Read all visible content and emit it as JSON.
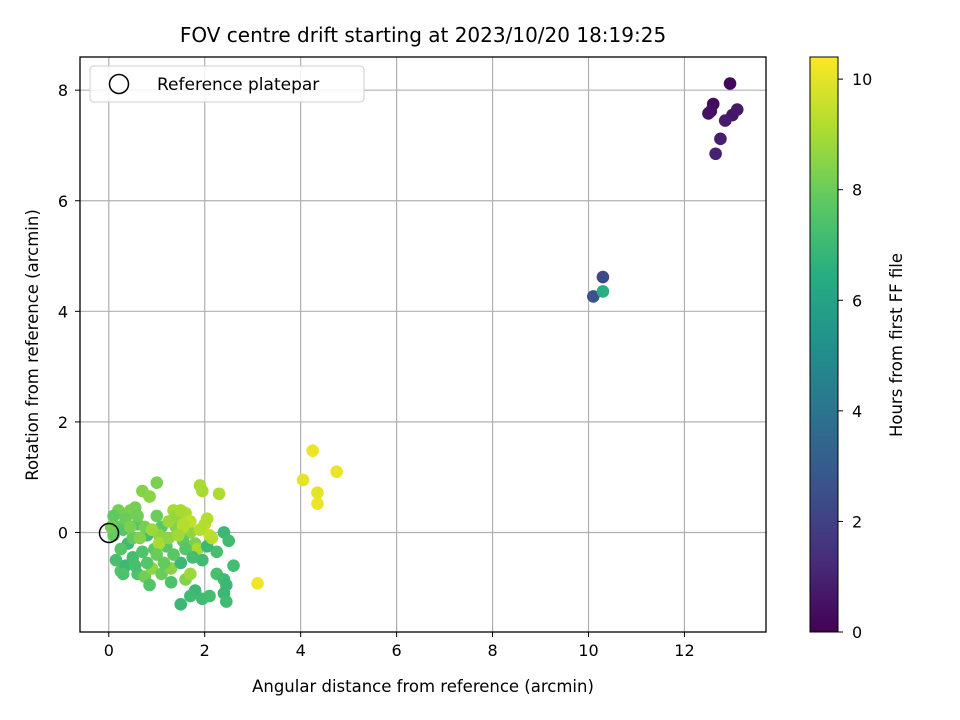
{
  "chart_data": {
    "type": "scatter",
    "title": "FOV centre drift starting at 2023/10/20 18:19:25",
    "xlabel": "Angular distance from reference (arcmin)",
    "ylabel": "Rotation from reference (arcmin)",
    "xlim": [
      -0.6,
      13.7
    ],
    "ylim": [
      -1.8,
      8.6
    ],
    "xticks": [
      0,
      2,
      4,
      6,
      8,
      10,
      12
    ],
    "yticks": [
      0,
      2,
      4,
      6,
      8
    ],
    "grid": true,
    "legend": {
      "placement": "upper-left",
      "entries": [
        "Reference platepar"
      ]
    },
    "colorbar": {
      "label": "Hours from first FF file",
      "range": [
        0,
        10.4
      ],
      "ticks": [
        0,
        2,
        4,
        6,
        8,
        10
      ],
      "colormap": "viridis"
    },
    "reference_point": {
      "x": 0,
      "y": 0,
      "label": "Reference platepar"
    },
    "points": [
      [
        12.95,
        8.12,
        0.2
      ],
      [
        12.6,
        7.75,
        0.3
      ],
      [
        12.55,
        7.62,
        0.4
      ],
      [
        12.5,
        7.58,
        0.5
      ],
      [
        13.0,
        7.55,
        0.6
      ],
      [
        13.1,
        7.65,
        0.7
      ],
      [
        12.85,
        7.45,
        0.8
      ],
      [
        12.75,
        7.12,
        0.9
      ],
      [
        12.65,
        6.85,
        1.0
      ],
      [
        10.3,
        4.62,
        2.3
      ],
      [
        10.1,
        4.27,
        2.6
      ],
      [
        10.3,
        4.36,
        6.5
      ],
      [
        4.25,
        1.48,
        10.1
      ],
      [
        4.75,
        1.1,
        10.1
      ],
      [
        4.05,
        0.95,
        10.0
      ],
      [
        4.35,
        0.72,
        10.0
      ],
      [
        4.35,
        0.52,
        10.1
      ],
      [
        3.1,
        -0.92,
        10.2
      ],
      [
        0.45,
        0.4,
        8.3
      ],
      [
        0.55,
        0.45,
        8.2
      ],
      [
        0.2,
        0.4,
        8.2
      ],
      [
        0.7,
        0.75,
        8.4
      ],
      [
        0.85,
        0.65,
        8.5
      ],
      [
        1.0,
        0.9,
        8.3
      ],
      [
        1.5,
        0.25,
        8.5
      ],
      [
        1.4,
        0.1,
        8.4
      ],
      [
        1.7,
        0.0,
        8.6
      ],
      [
        1.8,
        -0.2,
        8.3
      ],
      [
        1.9,
        0.85,
        9.0
      ],
      [
        1.95,
        0.75,
        9.0
      ],
      [
        2.3,
        0.7,
        9.1
      ],
      [
        2.0,
        0.15,
        9.3
      ],
      [
        2.1,
        -0.05,
        9.5
      ],
      [
        2.05,
        0.25,
        9.2
      ],
      [
        1.0,
        0.3,
        8.0
      ],
      [
        0.2,
        0.1,
        7.9
      ],
      [
        0.1,
        0.3,
        7.8
      ],
      [
        0.3,
        0.05,
        7.6
      ],
      [
        0.6,
        0.15,
        7.5
      ],
      [
        0.8,
        -0.05,
        7.2
      ],
      [
        0.4,
        -0.2,
        7.1
      ],
      [
        0.15,
        -0.5,
        7.3
      ],
      [
        0.25,
        -0.7,
        7.6
      ],
      [
        0.35,
        -0.6,
        7.0
      ],
      [
        0.5,
        -0.45,
        7.2
      ],
      [
        0.6,
        -0.75,
        7.4
      ],
      [
        0.75,
        -0.8,
        8.1
      ],
      [
        0.9,
        -0.65,
        8.6
      ],
      [
        0.85,
        -0.95,
        7.5
      ],
      [
        1.1,
        -0.75,
        8.0
      ],
      [
        1.3,
        -0.65,
        8.5
      ],
      [
        1.3,
        -0.9,
        7.4
      ],
      [
        1.5,
        -0.55,
        7.0
      ],
      [
        1.6,
        -0.85,
        8.4
      ],
      [
        1.7,
        -0.75,
        8.8
      ],
      [
        1.8,
        -1.05,
        7.0
      ],
      [
        1.5,
        -1.3,
        7.0
      ],
      [
        1.7,
        -1.15,
        7.1
      ],
      [
        1.95,
        -1.2,
        7.1
      ],
      [
        2.1,
        -1.15,
        7.2
      ],
      [
        2.25,
        -0.75,
        7.3
      ],
      [
        2.4,
        -0.85,
        7.1
      ],
      [
        2.45,
        -0.95,
        7.0
      ],
      [
        2.4,
        -1.1,
        7.0
      ],
      [
        2.45,
        -1.25,
        7.1
      ],
      [
        2.6,
        -0.6,
        7.2
      ],
      [
        2.25,
        -0.35,
        7.3
      ],
      [
        2.4,
        0.0,
        7.0
      ],
      [
        2.5,
        -0.15,
        7.1
      ],
      [
        1.2,
        -0.25,
        7.6
      ],
      [
        1.35,
        -0.4,
        7.7
      ],
      [
        1.55,
        -0.15,
        7.8
      ],
      [
        1.1,
        0.1,
        7.7
      ],
      [
        0.95,
        -0.3,
        7.8
      ],
      [
        0.7,
        -0.35,
        7.5
      ],
      [
        0.5,
        -0.1,
        7.9
      ],
      [
        0.35,
        0.25,
        8.0
      ],
      [
        0.6,
        0.3,
        8.1
      ],
      [
        0.75,
        0.1,
        8.2
      ],
      [
        1.05,
        -0.05,
        8.6
      ],
      [
        1.25,
        0.2,
        8.8
      ],
      [
        1.35,
        0.4,
        9.0
      ],
      [
        1.6,
        0.35,
        9.1
      ],
      [
        1.55,
        0.1,
        9.3
      ],
      [
        1.4,
        0.3,
        8.7
      ],
      [
        1.7,
        0.2,
        9.4
      ],
      [
        1.85,
        -0.3,
        9.0
      ],
      [
        1.9,
        0.05,
        9.2
      ],
      [
        1.05,
        -0.2,
        9.0
      ],
      [
        0.9,
        0.05,
        8.8
      ],
      [
        0.65,
        -0.1,
        8.4
      ],
      [
        0.45,
        0.1,
        8.3
      ],
      [
        1.0,
        -0.4,
        8.0
      ],
      [
        1.15,
        -0.55,
        7.9
      ],
      [
        1.25,
        -0.1,
        8.6
      ],
      [
        1.45,
        -0.05,
        8.9
      ],
      [
        1.55,
        0.15,
        9.2
      ],
      [
        1.6,
        -0.3,
        7.6
      ],
      [
        1.75,
        -0.45,
        7.2
      ],
      [
        1.95,
        -0.5,
        7.1
      ],
      [
        2.05,
        -0.25,
        7.0
      ],
      [
        2.15,
        -0.1,
        9.3
      ],
      [
        0.1,
        -0.05,
        7.9
      ],
      [
        0.05,
        0.1,
        8.1
      ],
      [
        0.25,
        -0.3,
        7.6
      ],
      [
        0.55,
        -0.6,
        7.3
      ],
      [
        0.3,
        -0.75,
        7.4
      ],
      [
        0.8,
        -0.55,
        7.6
      ],
      [
        1.5,
        0.4,
        9.0
      ]
    ]
  }
}
